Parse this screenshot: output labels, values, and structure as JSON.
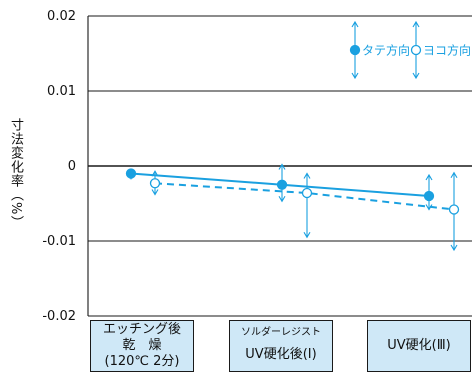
{
  "chart_data": {
    "type": "line",
    "ylabel": "寸法変化率（%）",
    "ylim": [
      -0.02,
      0.02
    ],
    "y_ticks": [
      "0.02",
      "0.01",
      "0",
      "-0.01",
      "-0.02"
    ],
    "y_tick_values": [
      0.02,
      0.01,
      0,
      -0.01,
      -0.02
    ],
    "grid": true,
    "categories": [
      {
        "lines": [
          "エッチング後",
          "乾　燥",
          "(120℃ 2分)"
        ]
      },
      {
        "lines": [
          "ソルダーレジスト",
          "UV硬化後(Ⅰ)"
        ]
      },
      {
        "lines": [
          "UV硬化(Ⅲ)"
        ]
      }
    ],
    "series": [
      {
        "name": "タテ方向",
        "marker": "filled",
        "line": "solid",
        "values": [
          -0.001,
          -0.0025,
          -0.004
        ],
        "error_high": [
          -0.0005,
          0.0002,
          -0.0012
        ],
        "error_low": [
          -0.0017,
          -0.0047,
          -0.0058
        ]
      },
      {
        "name": "ヨコ方向",
        "marker": "open",
        "line": "dashed",
        "values": [
          -0.0023,
          -0.0036,
          -0.0058
        ],
        "error_high": [
          -0.0007,
          -0.001,
          -0.0009
        ],
        "error_low": [
          -0.0038,
          -0.0095,
          -0.0112
        ]
      }
    ],
    "legend_position": "top-right",
    "colors": {
      "series": "#1aa0e0",
      "axis": "#1a1a1a",
      "category_box": "#cfe8f7"
    }
  }
}
